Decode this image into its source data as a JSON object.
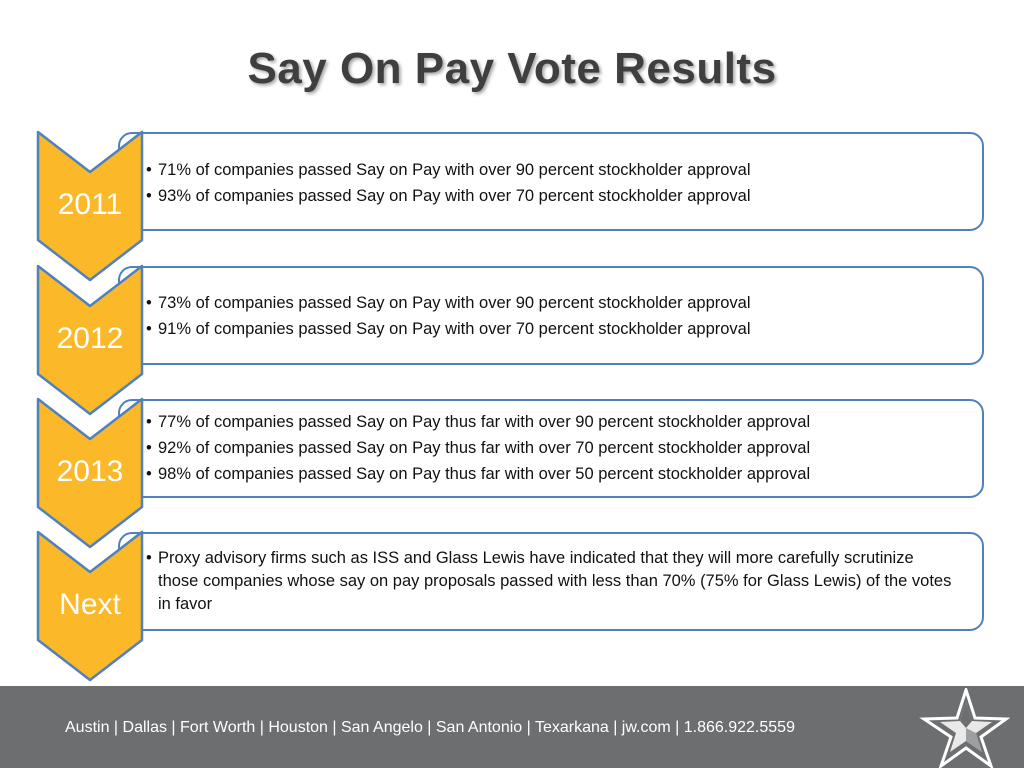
{
  "title": "Say On Pay Vote Results",
  "colors": {
    "chevron": "#fbb829",
    "box_border": "#4f81bd",
    "footer": "#6d6e70"
  },
  "rows": [
    {
      "label": "2011",
      "bullets": [
        "71% of companies passed Say on Pay with over 90 percent stockholder approval",
        "93% of companies passed Say on Pay with over 70 percent stockholder approval"
      ]
    },
    {
      "label": "2012",
      "bullets": [
        "73% of companies passed Say on Pay with over 90 percent stockholder approval",
        "91% of companies passed Say on Pay with over 70 percent stockholder approval"
      ]
    },
    {
      "label": "2013",
      "bullets": [
        "77% of companies passed Say on Pay thus far with over 90 percent stockholder approval",
        "92% of companies passed Say on Pay thus far with over 70 percent stockholder approval",
        "98% of companies passed Say on Pay thus far with over 50 percent stockholder approval"
      ]
    },
    {
      "label": "Next",
      "bullets": [
        "Proxy advisory firms such as ISS and Glass Lewis have indicated that they will more carefully scrutinize those companies whose say on pay proposals passed with less than 70% (75% for Glass Lewis) of the votes in favor"
      ]
    }
  ],
  "footer": {
    "text": "Austin | Dallas | Fort Worth | Houston | San Angelo | San Antonio | Texarkana | jw.com | 1.866.922.5559",
    "logo_icon": "star-logo-icon"
  }
}
